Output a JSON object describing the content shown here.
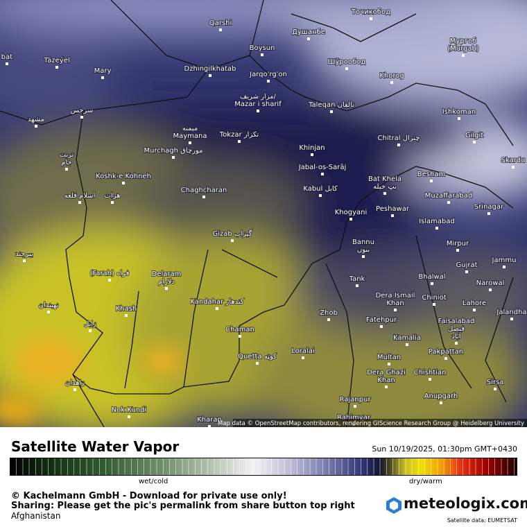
{
  "map": {
    "places": [
      {
        "lines": [
          "Qarshi"
        ]
      },
      {
        "lines": [
          "Душанбе"
        ]
      },
      {
        "lines": [
          "Точикобод"
        ]
      },
      {
        "lines": [
          "Boysun"
        ]
      },
      {
        "lines": [
          "Мургоб",
          "(Murgab)"
        ]
      },
      {
        "lines": [
          "Täzeýel"
        ]
      },
      {
        "lines": [
          "Mary"
        ]
      },
      {
        "lines": [
          "Dzhingilkhatab"
        ]
      },
      {
        "lines": [
          "Jarqo'rg'on"
        ]
      },
      {
        "lines": [
          "Шўрообод"
        ]
      },
      {
        "lines": [
          "Khorog"
        ]
      },
      {
        "lines": [
          "bat"
        ]
      },
      {
        "lines": [
          "مزار شریف/",
          "Mazar i sharif"
        ]
      },
      {
        "lines": [
          "Taleqan تالقان"
        ]
      },
      {
        "lines": [
          "Ishkoman"
        ]
      },
      {
        "lines": [
          "سرخس"
        ]
      },
      {
        "lines": [
          "مشهد"
        ]
      },
      {
        "lines": [
          "میمنه",
          "Maymana"
        ]
      },
      {
        "lines": [
          "Tokzar تکزار"
        ]
      },
      {
        "lines": [
          "Chitral چترال"
        ]
      },
      {
        "lines": [
          "Gilgit"
        ]
      },
      {
        "lines": [
          "تربت",
          "جام"
        ]
      },
      {
        "lines": [
          "Murchagh مورچاق"
        ]
      },
      {
        "lines": [
          "Khinjan"
        ]
      },
      {
        "lines": [
          "Skardu"
        ]
      },
      {
        "lines": [
          "Jabal-os-Sarāj"
        ]
      },
      {
        "lines": [
          "Besham"
        ]
      },
      {
        "lines": [
          "Koshk-e Kohneh"
        ]
      },
      {
        "lines": [
          "Bat Khela",
          "بټ خېله"
        ]
      },
      {
        "lines": [
          "Kabul کابل"
        ]
      },
      {
        "lines": [
          "Chaghcharan"
        ]
      },
      {
        "lines": [
          "Muzaffarabad"
        ]
      },
      {
        "lines": [
          "اسلام قلعه"
        ]
      },
      {
        "lines": [
          "هرات"
        ]
      },
      {
        "lines": [
          "Peshawar"
        ]
      },
      {
        "lines": [
          "Khogyani"
        ]
      },
      {
        "lines": [
          "Srinagar"
        ]
      },
      {
        "lines": [
          "Islamabad"
        ]
      },
      {
        "lines": [
          "Gizab گیزاب"
        ]
      },
      {
        "lines": [
          "Bannu",
          "بنون"
        ]
      },
      {
        "lines": [
          "Mirpur"
        ]
      },
      {
        "lines": [
          "بیرجند"
        ]
      },
      {
        "lines": [
          "Jammu"
        ]
      },
      {
        "lines": [
          "Gujrat"
        ]
      },
      {
        "lines": [
          "(Farah) فراه"
        ]
      },
      {
        "lines": [
          "Delaram",
          "دلارام"
        ]
      },
      {
        "lines": [
          "Bhalwal"
        ]
      },
      {
        "lines": [
          "Tank"
        ]
      },
      {
        "lines": [
          "Narowal"
        ]
      },
      {
        "lines": [
          "Dera Ismail",
          "Khan"
        ]
      },
      {
        "lines": [
          "Chiniot"
        ]
      },
      {
        "lines": [
          "Kandahar کندهار"
        ]
      },
      {
        "lines": [
          "Lahore"
        ]
      },
      {
        "lines": [
          "Khash"
        ]
      },
      {
        "lines": [
          "نهبندان"
        ]
      },
      {
        "lines": [
          "Jalandha"
        ]
      },
      {
        "lines": [
          "Zhob"
        ]
      },
      {
        "lines": [
          "Fatehpur"
        ]
      },
      {
        "lines": [
          "Faisalabad",
          "فیصل",
          "آباد"
        ]
      },
      {
        "lines": [
          "زابل"
        ]
      },
      {
        "lines": [
          "Chaman"
        ]
      },
      {
        "lines": [
          "Kamalia"
        ]
      },
      {
        "lines": [
          "Loralai"
        ]
      },
      {
        "lines": [
          "Quetta کوټه"
        ]
      },
      {
        "lines": [
          "Pakpattan"
        ]
      },
      {
        "lines": [
          "Multan"
        ]
      },
      {
        "lines": [
          "Dera Ghazi",
          "Khan"
        ]
      },
      {
        "lines": [
          "Chishtian"
        ]
      },
      {
        "lines": [
          "زاهدان"
        ]
      },
      {
        "lines": [
          "Sirsa"
        ]
      },
      {
        "lines": [
          "Anupgarh"
        ]
      },
      {
        "lines": [
          "Rajanpur"
        ]
      },
      {
        "lines": [
          "Nok Kundi"
        ]
      },
      {
        "lines": [
          "Kharan"
        ]
      },
      {
        "lines": [
          "Rahimyar"
        ]
      }
    ],
    "attribution": "Map data © OpenStreetMap contributors, rendering GIScience Research Group @ Heidelberg University"
  },
  "panel": {
    "title": "Satellite Water Vapor",
    "timestamp": "Sun 10/19/2025, 01:30pm GMT+0430",
    "scale_low": "wet/cold",
    "scale_high": "dry/warm",
    "copyright": "© Kachelmann GmbH - Download for private use only!",
    "sharing": "Sharing: Please get the pic's permalink from share button top right",
    "region": "Afghanistan",
    "logo": "meteologix.com",
    "source": "Satellite data: EUMETSAT"
  }
}
